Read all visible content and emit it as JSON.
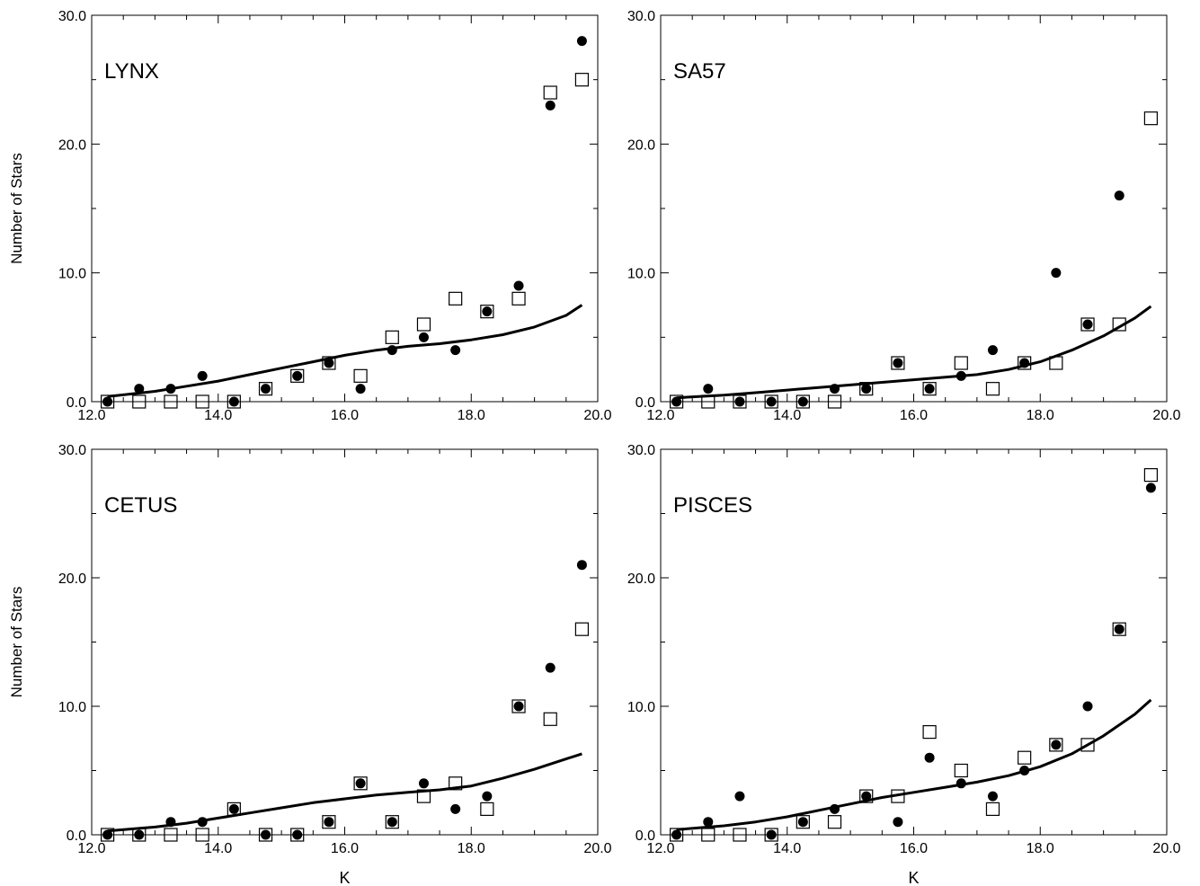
{
  "chart_data": [
    {
      "type": "scatter",
      "title": "LYNX",
      "xlabel": "",
      "ylabel": "Number of Stars",
      "xlim": [
        12.0,
        20.0
      ],
      "ylim": [
        0,
        30
      ],
      "x_ticks": [
        "12.0",
        "14.0",
        "16.0",
        "18.0",
        "20.0"
      ],
      "y_ticks": [
        "0.0",
        "10.0",
        "20.0",
        "30.0"
      ],
      "series": [
        {
          "marker": "filled-circle",
          "x": [
            12.25,
            12.75,
            13.25,
            13.75,
            14.25,
            14.75,
            15.25,
            15.75,
            16.25,
            16.75,
            17.25,
            17.75,
            18.25,
            18.75,
            19.25,
            19.75
          ],
          "y": [
            0,
            1,
            1,
            2,
            0,
            1,
            2,
            3,
            1,
            4,
            5,
            4,
            7,
            9,
            23,
            28
          ]
        },
        {
          "marker": "open-square",
          "x": [
            12.25,
            12.75,
            13.25,
            13.75,
            14.25,
            14.75,
            15.25,
            15.75,
            16.25,
            16.75,
            17.25,
            17.75,
            18.25,
            18.75,
            19.25,
            19.75
          ],
          "y": [
            0,
            0,
            0,
            0,
            0,
            1,
            2,
            3,
            2,
            5,
            6,
            8,
            7,
            8,
            24,
            25
          ]
        },
        {
          "marker": "line",
          "x": [
            12.25,
            13.0,
            13.5,
            14.0,
            14.5,
            15.0,
            15.5,
            16.0,
            16.5,
            17.0,
            17.5,
            18.0,
            18.5,
            19.0,
            19.5,
            19.75
          ],
          "y": [
            0.4,
            0.8,
            1.2,
            1.6,
            2.1,
            2.6,
            3.1,
            3.6,
            4.0,
            4.3,
            4.5,
            4.8,
            5.2,
            5.8,
            6.7,
            7.5
          ]
        }
      ]
    },
    {
      "type": "scatter",
      "title": "SA57",
      "xlabel": "",
      "ylabel": "",
      "xlim": [
        12.0,
        20.0
      ],
      "ylim": [
        0,
        30
      ],
      "x_ticks": [
        "12.0",
        "14.0",
        "16.0",
        "18.0",
        "20.0"
      ],
      "y_ticks": [
        "0.0",
        "10.0",
        "20.0",
        "30.0"
      ],
      "series": [
        {
          "marker": "filled-circle",
          "x": [
            12.25,
            12.75,
            13.25,
            13.75,
            14.25,
            14.75,
            15.25,
            15.75,
            16.25,
            16.75,
            17.25,
            17.75,
            18.25,
            18.75,
            19.25
          ],
          "y": [
            0,
            1,
            0,
            0,
            0,
            1,
            1,
            3,
            1,
            2,
            4,
            3,
            10,
            6,
            16
          ]
        },
        {
          "marker": "open-square",
          "x": [
            12.25,
            12.75,
            13.25,
            13.75,
            14.25,
            14.75,
            15.25,
            15.75,
            16.25,
            16.75,
            17.25,
            17.75,
            18.25,
            18.75,
            19.25,
            19.75
          ],
          "y": [
            0,
            0,
            0,
            0,
            0,
            0,
            1,
            3,
            1,
            3,
            1,
            3,
            3,
            6,
            6,
            22
          ]
        },
        {
          "marker": "line",
          "x": [
            12.25,
            13.0,
            13.5,
            14.0,
            14.5,
            15.0,
            15.5,
            16.0,
            16.5,
            17.0,
            17.5,
            18.0,
            18.5,
            19.0,
            19.5,
            19.75
          ],
          "y": [
            0.3,
            0.5,
            0.7,
            0.9,
            1.1,
            1.3,
            1.5,
            1.7,
            1.9,
            2.1,
            2.5,
            3.1,
            4.0,
            5.1,
            6.5,
            7.4
          ]
        }
      ]
    },
    {
      "type": "scatter",
      "title": "CETUS",
      "xlabel": "K",
      "ylabel": "Number of Stars",
      "xlim": [
        12.0,
        20.0
      ],
      "ylim": [
        0,
        30
      ],
      "x_ticks": [
        "12.0",
        "14.0",
        "16.0",
        "18.0",
        "20.0"
      ],
      "y_ticks": [
        "0.0",
        "10.0",
        "20.0",
        "30.0"
      ],
      "series": [
        {
          "marker": "filled-circle",
          "x": [
            12.25,
            12.75,
            13.25,
            13.75,
            14.25,
            14.75,
            15.25,
            15.75,
            16.25,
            16.75,
            17.25,
            17.75,
            18.25,
            18.75,
            19.25,
            19.75
          ],
          "y": [
            0,
            0,
            1,
            1,
            2,
            0,
            0,
            1,
            4,
            1,
            4,
            2,
            3,
            10,
            13,
            21
          ]
        },
        {
          "marker": "open-square",
          "x": [
            12.25,
            12.75,
            13.25,
            13.75,
            14.25,
            14.75,
            15.25,
            15.75,
            16.25,
            16.75,
            17.25,
            17.75,
            18.25,
            18.75,
            19.25,
            19.75
          ],
          "y": [
            0,
            0,
            0,
            0,
            2,
            0,
            0,
            1,
            4,
            1,
            3,
            4,
            2,
            10,
            9,
            16
          ]
        },
        {
          "marker": "line",
          "x": [
            12.25,
            13.0,
            13.5,
            14.0,
            14.5,
            15.0,
            15.5,
            16.0,
            16.5,
            17.0,
            17.5,
            18.0,
            18.5,
            19.0,
            19.5,
            19.75
          ],
          "y": [
            0.3,
            0.6,
            0.9,
            1.3,
            1.7,
            2.1,
            2.5,
            2.8,
            3.1,
            3.3,
            3.5,
            3.8,
            4.4,
            5.1,
            5.9,
            6.3
          ]
        }
      ]
    },
    {
      "type": "scatter",
      "title": "PISCES",
      "xlabel": "K",
      "ylabel": "",
      "xlim": [
        12.0,
        20.0
      ],
      "ylim": [
        0,
        30
      ],
      "x_ticks": [
        "12.0",
        "14.0",
        "16.0",
        "18.0",
        "20.0"
      ],
      "y_ticks": [
        "0.0",
        "10.0",
        "20.0",
        "30.0"
      ],
      "series": [
        {
          "marker": "filled-circle",
          "x": [
            12.25,
            12.75,
            13.25,
            13.75,
            14.25,
            14.75,
            15.25,
            15.75,
            16.25,
            16.75,
            17.25,
            17.75,
            18.25,
            18.75,
            19.25,
            19.75
          ],
          "y": [
            0,
            1,
            3,
            0,
            1,
            2,
            3,
            1,
            6,
            4,
            3,
            5,
            7,
            10,
            16,
            27
          ]
        },
        {
          "marker": "open-square",
          "x": [
            12.25,
            12.75,
            13.25,
            13.75,
            14.25,
            14.75,
            15.25,
            15.75,
            16.25,
            16.75,
            17.25,
            17.75,
            18.25,
            18.75,
            19.25,
            19.75
          ],
          "y": [
            0,
            0,
            0,
            0,
            1,
            1,
            3,
            3,
            8,
            5,
            2,
            6,
            7,
            7,
            16,
            28
          ]
        },
        {
          "marker": "line",
          "x": [
            12.25,
            13.0,
            13.5,
            14.0,
            14.5,
            15.0,
            15.5,
            16.0,
            16.5,
            17.0,
            17.5,
            18.0,
            18.5,
            19.0,
            19.5,
            19.75
          ],
          "y": [
            0.4,
            0.7,
            1.0,
            1.4,
            1.9,
            2.4,
            2.9,
            3.3,
            3.7,
            4.1,
            4.6,
            5.3,
            6.3,
            7.7,
            9.4,
            10.5
          ]
        }
      ]
    }
  ]
}
